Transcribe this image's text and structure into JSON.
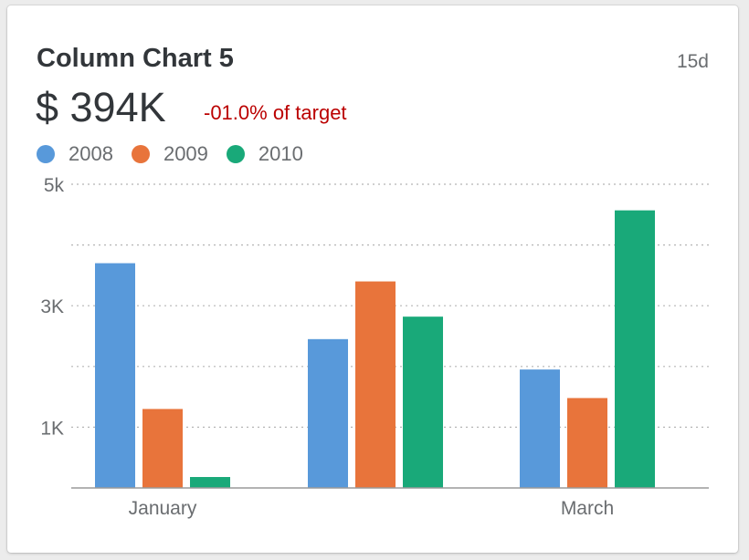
{
  "card": {
    "title": "Column Chart 5",
    "age": "15d",
    "kpi_value": "$ 394K",
    "kpi_delta": "-01.0% of target",
    "kpi_delta_color": "#bb0000"
  },
  "chart_data": {
    "type": "bar",
    "categories": [
      "January",
      "",
      "March"
    ],
    "x_tick_labels": [
      "January",
      "",
      "March"
    ],
    "y_ticks": [
      {
        "value": 1000,
        "label": "1K"
      },
      {
        "value": 3000,
        "label": "3K"
      },
      {
        "value": 5000,
        "label": "5k"
      }
    ],
    "gridlines": [
      1000,
      2000,
      3000,
      4000,
      5000
    ],
    "ylim": [
      0,
      5000
    ],
    "grid": true,
    "legend_position": "top-left",
    "series": [
      {
        "name": "2008",
        "color": "#5899da",
        "values": [
          3700,
          2450,
          1950
        ]
      },
      {
        "name": "2009",
        "color": "#e8743b",
        "values": [
          1300,
          3400,
          1480
        ]
      },
      {
        "name": "2010",
        "color": "#19a979",
        "values": [
          180,
          2820,
          4570
        ]
      }
    ]
  }
}
